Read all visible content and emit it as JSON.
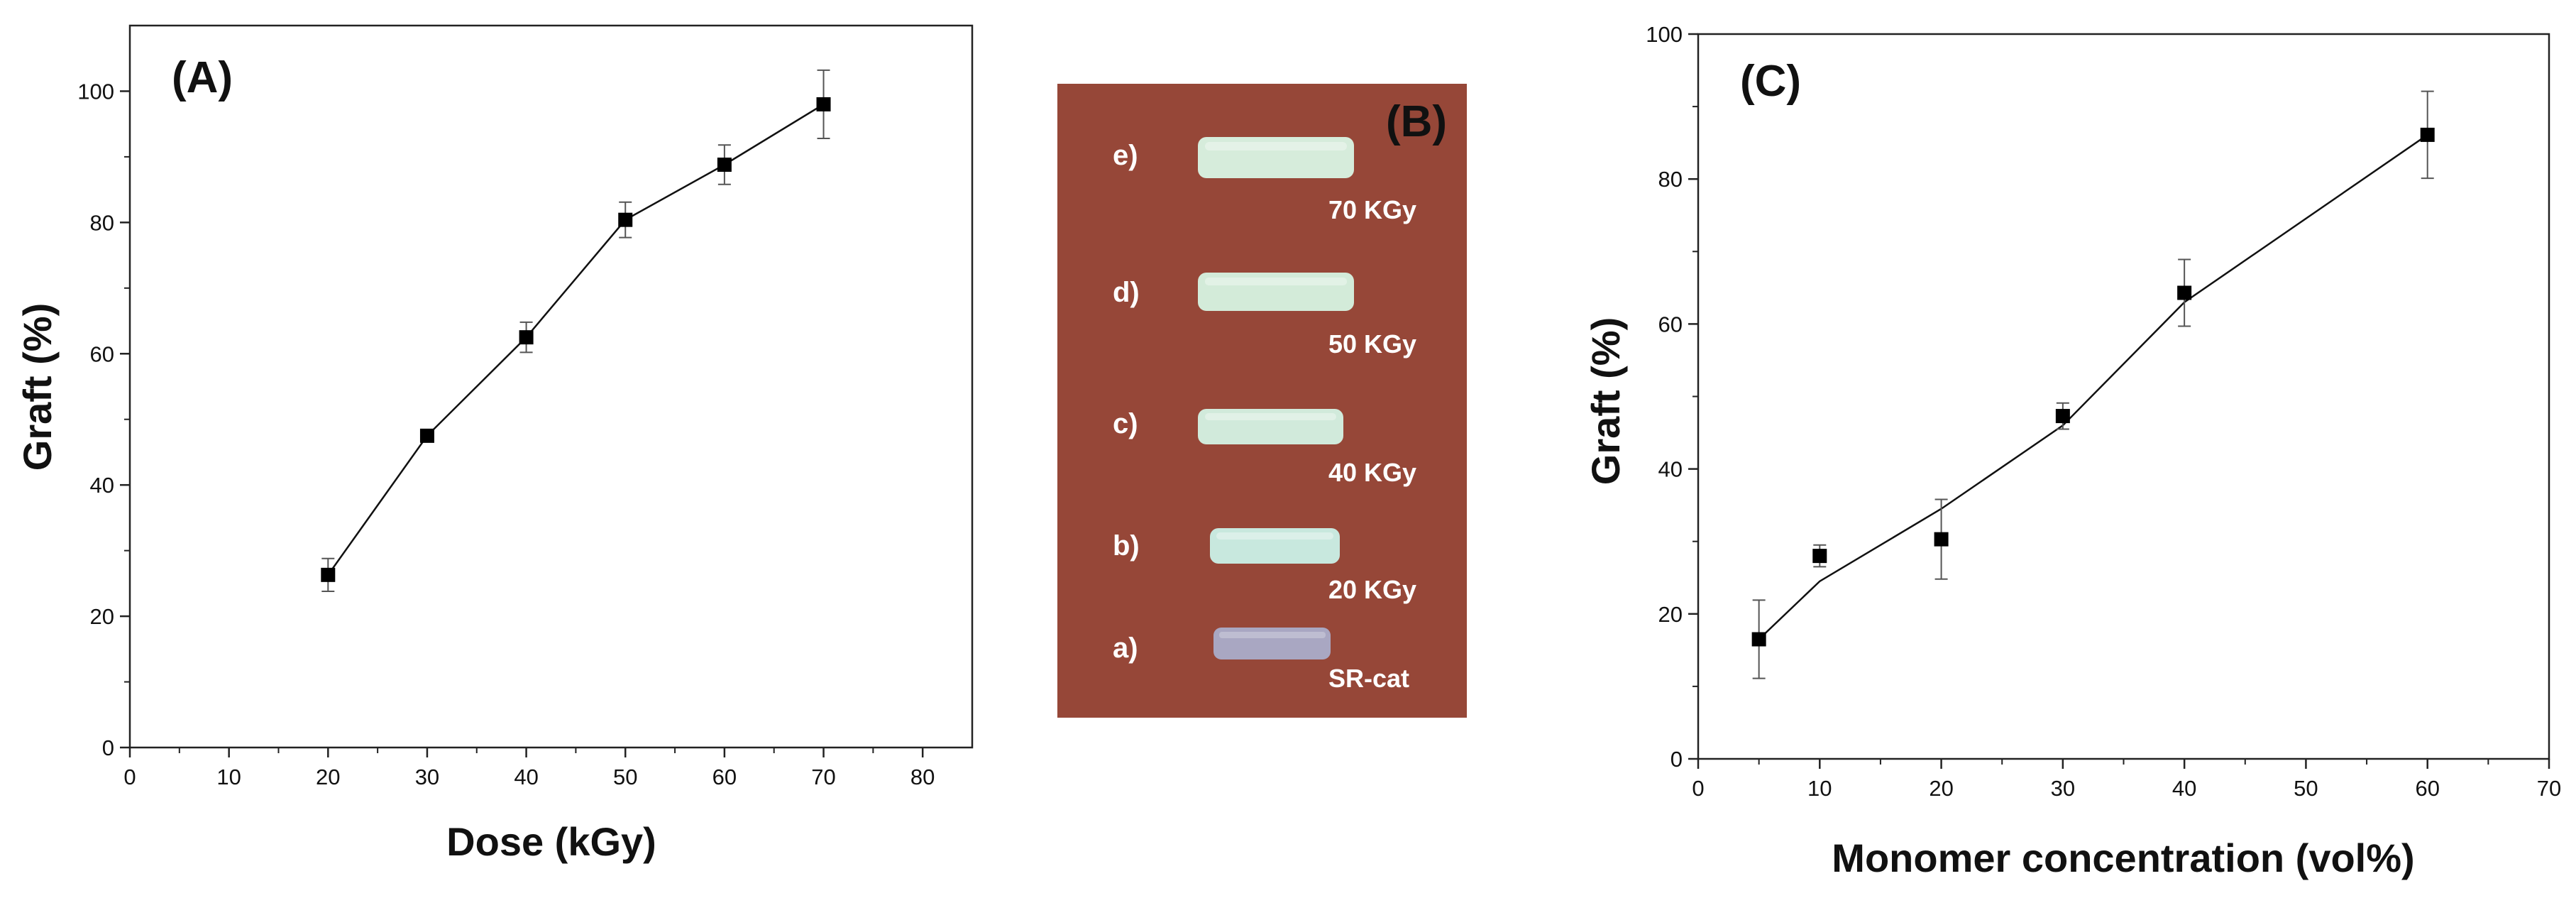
{
  "chart_data": [
    {
      "panel": "(A)",
      "type": "line",
      "title": "",
      "xlabel": "Dose (kGy)",
      "ylabel": "Graft (%)",
      "xlim": [
        0,
        85
      ],
      "ylim": [
        0,
        110
      ],
      "xticks": [
        0,
        10,
        20,
        30,
        40,
        50,
        60,
        70,
        80
      ],
      "yticks": [
        0,
        20,
        40,
        60,
        80,
        100
      ],
      "grid": false,
      "marker": "square",
      "series": [
        {
          "name": "Graft",
          "x": [
            20,
            30,
            40,
            50,
            60,
            70
          ],
          "y": [
            26.3,
            47.5,
            62.5,
            80.4,
            88.8,
            98.0
          ],
          "err": [
            2.5,
            0.5,
            2.3,
            2.7,
            3.0,
            5.2
          ]
        }
      ]
    },
    {
      "panel": "(C)",
      "type": "line",
      "title": "",
      "xlabel": "Monomer concentration (vol%)",
      "ylabel": "Graft (%)",
      "xlim": [
        0,
        70
      ],
      "ylim": [
        0,
        100
      ],
      "xticks": [
        0,
        10,
        20,
        30,
        40,
        50,
        60,
        70
      ],
      "yticks": [
        0,
        20,
        40,
        60,
        80,
        100
      ],
      "grid": false,
      "marker": "square",
      "series": [
        {
          "name": "Graft",
          "x": [
            5,
            10,
            20,
            30,
            40,
            60
          ],
          "y": [
            16.5,
            28.0,
            30.3,
            47.3,
            64.3,
            86.1
          ],
          "err": [
            5.4,
            1.5,
            5.5,
            1.8,
            4.6,
            6.0
          ],
          "fit_x": [
            5,
            10,
            20,
            30,
            40,
            60
          ],
          "fit_y": [
            16.5,
            24.5,
            34.5,
            46.0,
            63.0,
            86.1
          ]
        }
      ]
    }
  ],
  "photo": {
    "label": "(B)",
    "samples": [
      {
        "letter": "e)",
        "dose": "70 KGy",
        "color": "#d6ecdb"
      },
      {
        "letter": "d)",
        "dose": "50 KGy",
        "color": "#d3ebd9"
      },
      {
        "letter": "c)",
        "dose": "40 KGy",
        "color": "#d1eadb"
      },
      {
        "letter": "b)",
        "dose": "20 KGy",
        "color": "#c8e8de"
      },
      {
        "letter": "a)",
        "dose": "SR-cat",
        "color": "#a9a7c2"
      }
    ],
    "background_color": "#9a4a3a"
  }
}
